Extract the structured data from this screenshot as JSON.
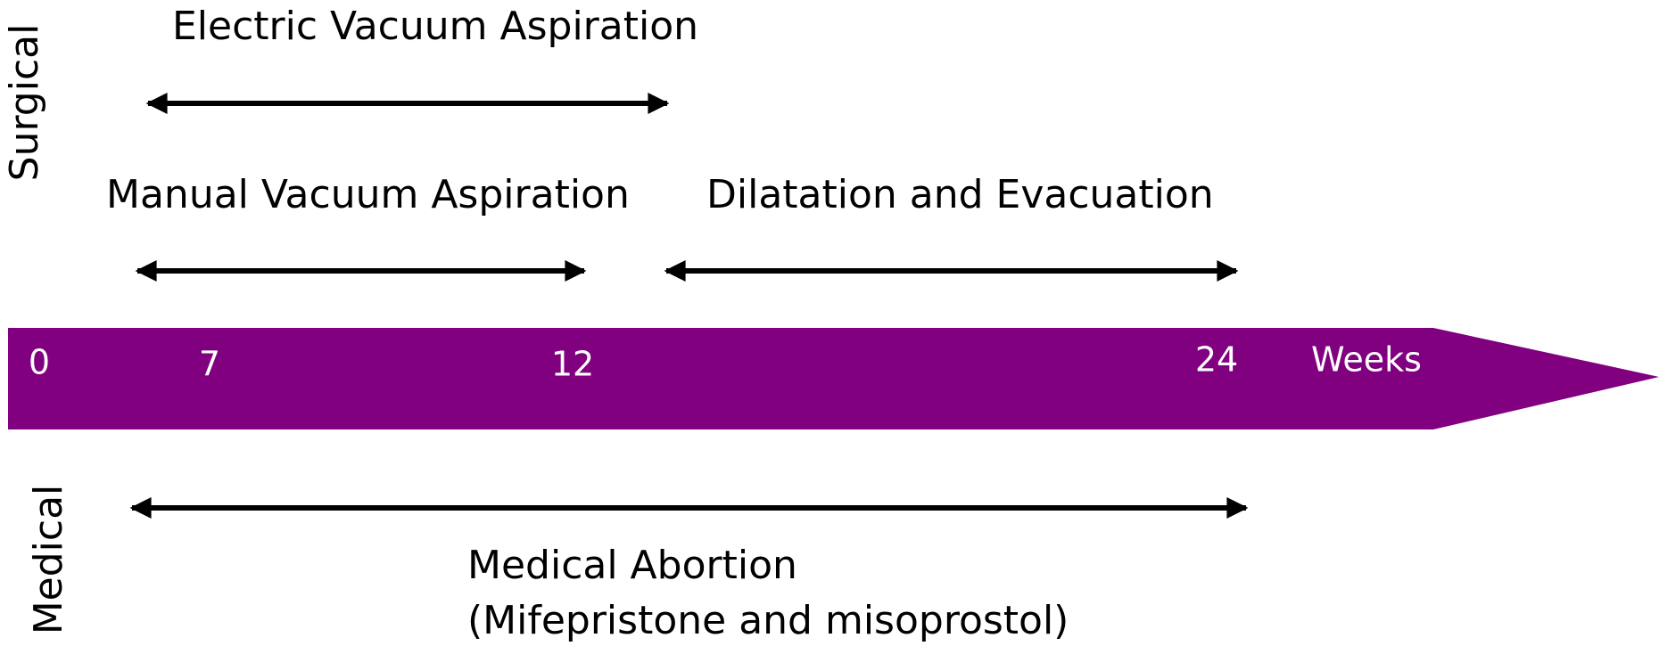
{
  "side_labels": {
    "surgical": "Surgical",
    "medical": "Medical"
  },
  "procedures": [
    {
      "label": "Electric Vacuum Aspiration"
    },
    {
      "label": "Manual Vacuum Aspiration"
    },
    {
      "label": "Dilatation and Evacuation"
    }
  ],
  "timeline": {
    "ticks": [
      0,
      7,
      12,
      24
    ],
    "unit": "Weeks"
  },
  "medical": {
    "lines": [
      "Medical Abortion",
      "(Mifepristone and misoprostol)"
    ]
  }
}
